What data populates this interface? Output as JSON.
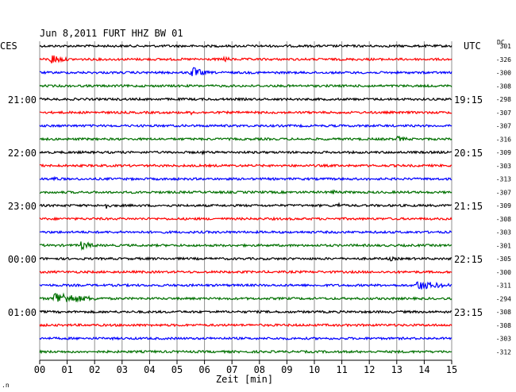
{
  "chart_data": {
    "type": "line",
    "title": "Jun 8,2011   FURT HHZ BW 01",
    "left_timezone": "CES",
    "right_timezone": "UTC",
    "dc_header": "DC",
    "xlabel": "Zeit [min]",
    "xlim": [
      0,
      15
    ],
    "x_tick_labels": [
      "00",
      "01",
      "02",
      "03",
      "04",
      "05",
      "06",
      "07",
      "08",
      "09",
      "10",
      "11",
      "12",
      "13",
      "14",
      "15"
    ],
    "left_time_labels": [
      "21:00",
      "22:00",
      "23:00",
      "00:00",
      "01:00"
    ],
    "right_time_labels": [
      "19:15",
      "20:15",
      "21:15",
      "22:15",
      "23:15"
    ],
    "trace_colors": [
      "#000000",
      "#ff0000",
      "#0000ff",
      "#007000"
    ],
    "dc_offsets": [
      "301",
      "-326",
      "-300",
      "-308",
      "-298",
      "-307",
      "-307",
      "-316",
      "-309",
      "-303",
      "-313",
      "-307",
      "-309",
      "-308",
      "-303",
      "-301",
      "-305",
      "-300",
      "-311",
      "-294",
      "-308",
      "-308",
      "-303",
      "-312"
    ],
    "events": [
      {
        "trace": 1,
        "minute": 0.4,
        "amplitude": 8,
        "duration": 0.9
      },
      {
        "trace": 1,
        "minute": 6.7,
        "amplitude": 4,
        "duration": 0.7
      },
      {
        "trace": 2,
        "minute": 5.5,
        "amplitude": 9,
        "duration": 0.9
      },
      {
        "trace": 3,
        "minute": 11.9,
        "amplitude": 3,
        "duration": 0.6
      },
      {
        "trace": 5,
        "minute": 5.5,
        "amplitude": 3,
        "duration": 0.5
      },
      {
        "trace": 7,
        "minute": 13.0,
        "amplitude": 4,
        "duration": 1.0
      },
      {
        "trace": 8,
        "minute": 5.9,
        "amplitude": 3,
        "duration": 0.4
      },
      {
        "trace": 10,
        "minute": 0.5,
        "amplitude": 5,
        "duration": 0.4
      },
      {
        "trace": 11,
        "minute": 10.6,
        "amplitude": 3,
        "duration": 1.3
      },
      {
        "trace": 12,
        "minute": 2.4,
        "amplitude": 6,
        "duration": 0.3
      },
      {
        "trace": 12,
        "minute": 10.8,
        "amplitude": 4,
        "duration": 0.8
      },
      {
        "trace": 15,
        "minute": 1.5,
        "amplitude": 6,
        "duration": 1.0
      },
      {
        "trace": 16,
        "minute": 12.7,
        "amplitude": 4,
        "duration": 0.6
      },
      {
        "trace": 18,
        "minute": 13.7,
        "amplitude": 7,
        "duration": 2.1
      },
      {
        "trace": 19,
        "minute": 0.5,
        "amplitude": 10,
        "duration": 2.2
      },
      {
        "trace": 23,
        "minute": 13.0,
        "amplitude": 2,
        "duration": 0.8
      }
    ]
  }
}
